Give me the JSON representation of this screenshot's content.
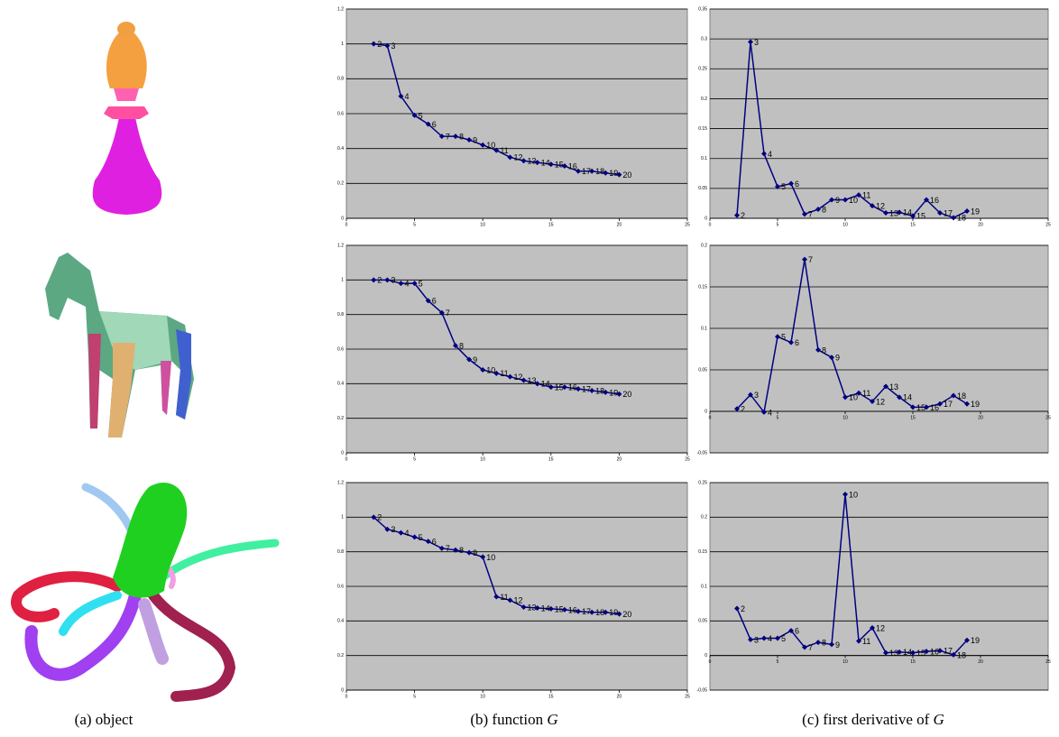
{
  "chart_data": [
    {
      "type": "line",
      "x": [
        2,
        3,
        4,
        5,
        6,
        7,
        8,
        9,
        10,
        11,
        12,
        13,
        14,
        15,
        16,
        17,
        18,
        19,
        20
      ],
      "values": [
        1.0,
        0.99,
        0.7,
        0.59,
        0.54,
        0.47,
        0.47,
        0.45,
        0.42,
        0.39,
        0.35,
        0.33,
        0.32,
        0.31,
        0.3,
        0.27,
        0.27,
        0.26,
        0.25
      ],
      "color": "#000080",
      "xlim": [
        0,
        25
      ],
      "xticks": [
        0,
        5,
        10,
        15,
        20,
        25
      ],
      "ylim": [
        0,
        1.2
      ],
      "yticks": [
        0,
        0.2,
        0.4,
        0.6,
        0.8,
        1,
        1.2
      ],
      "grid": true
    },
    {
      "type": "line",
      "x": [
        2,
        3,
        4,
        5,
        6,
        7,
        8,
        9,
        10,
        11,
        12,
        13,
        14,
        15,
        16,
        17,
        18,
        19
      ],
      "values": [
        0.005,
        0.295,
        0.108,
        0.053,
        0.058,
        0.007,
        0.015,
        0.031,
        0.031,
        0.039,
        0.021,
        0.009,
        0.01,
        0.004,
        0.031,
        0.009,
        0.001,
        0.012
      ],
      "color": "#000080",
      "xlim": [
        0,
        25
      ],
      "xticks": [
        0,
        5,
        10,
        15,
        20,
        25
      ],
      "ylim": [
        0,
        0.35
      ],
      "yticks": [
        0,
        0.05,
        0.1,
        0.15,
        0.2,
        0.25,
        0.3,
        0.35
      ],
      "grid": true
    },
    {
      "type": "line",
      "x": [
        2,
        3,
        4,
        5,
        6,
        7,
        8,
        9,
        10,
        11,
        12,
        13,
        14,
        15,
        16,
        17,
        18,
        19,
        20
      ],
      "values": [
        1.0,
        1.0,
        0.98,
        0.98,
        0.88,
        0.81,
        0.62,
        0.54,
        0.48,
        0.46,
        0.44,
        0.42,
        0.4,
        0.38,
        0.38,
        0.37,
        0.36,
        0.35,
        0.34
      ],
      "color": "#000080",
      "xlim": [
        0,
        25
      ],
      "xticks": [
        0,
        5,
        10,
        15,
        20,
        25
      ],
      "ylim": [
        0,
        1.2
      ],
      "yticks": [
        0,
        0.2,
        0.4,
        0.6,
        0.8,
        1,
        1.2
      ],
      "grid": true
    },
    {
      "type": "line",
      "x": [
        2,
        3,
        4,
        5,
        6,
        7,
        8,
        9,
        10,
        11,
        12,
        13,
        14,
        15,
        16,
        17,
        18,
        19
      ],
      "values": [
        0.003,
        0.02,
        -0.001,
        0.09,
        0.083,
        0.183,
        0.074,
        0.065,
        0.017,
        0.022,
        0.012,
        0.03,
        0.017,
        0.005,
        0.005,
        0.009,
        0.019,
        0.009
      ],
      "color": "#000080",
      "xlim": [
        0,
        25
      ],
      "xticks": [
        0,
        5,
        10,
        15,
        20,
        25
      ],
      "ylim": [
        -0.05,
        0.2
      ],
      "yticks": [
        -0.05,
        0,
        0.05,
        0.1,
        0.15,
        0.2
      ],
      "grid": true
    },
    {
      "type": "line",
      "x": [
        2,
        3,
        4,
        5,
        6,
        7,
        8,
        9,
        10,
        11,
        12,
        13,
        14,
        15,
        16,
        17,
        18,
        19,
        20
      ],
      "values": [
        1.0,
        0.93,
        0.91,
        0.885,
        0.86,
        0.82,
        0.81,
        0.795,
        0.77,
        0.54,
        0.52,
        0.48,
        0.475,
        0.47,
        0.465,
        0.455,
        0.45,
        0.45,
        0.44
      ],
      "color": "#000080",
      "xlim": [
        0,
        25
      ],
      "xticks": [
        0,
        5,
        10,
        15,
        20,
        25
      ],
      "ylim": [
        0,
        1.2
      ],
      "yticks": [
        0,
        0.2,
        0.4,
        0.6,
        0.8,
        1,
        1.2
      ],
      "grid": true
    },
    {
      "type": "line",
      "x": [
        2,
        3,
        4,
        5,
        6,
        7,
        8,
        9,
        10,
        11,
        12,
        13,
        14,
        15,
        16,
        17,
        18,
        19
      ],
      "values": [
        0.068,
        0.023,
        0.025,
        0.025,
        0.036,
        0.012,
        0.019,
        0.016,
        0.233,
        0.021,
        0.04,
        0.004,
        0.005,
        0.004,
        0.006,
        0.007,
        0.001,
        0.022
      ],
      "color": "#000080",
      "xlim": [
        0,
        25
      ],
      "xticks": [
        0,
        5,
        10,
        15,
        20,
        25
      ],
      "ylim": [
        -0.05,
        0.25
      ],
      "yticks": [
        -0.05,
        0,
        0.05,
        0.1,
        0.15,
        0.2,
        0.25
      ],
      "grid": true
    }
  ],
  "captions": [
    {
      "text": "(a) object"
    },
    {
      "text": "(b) function",
      "math": "G"
    },
    {
      "text": "(c) first derivative of",
      "math": "G"
    }
  ]
}
